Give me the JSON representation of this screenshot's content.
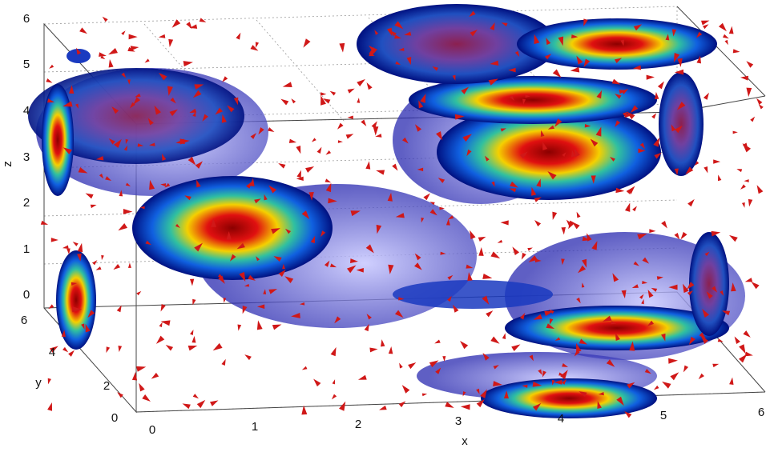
{
  "axes": {
    "x": {
      "label": "x",
      "ticks": [
        "0",
        "1",
        "2",
        "3",
        "4",
        "5",
        "6"
      ]
    },
    "y": {
      "label": "y",
      "ticks": [
        "0",
        "2",
        "4",
        "6"
      ]
    },
    "z": {
      "label": "z",
      "ticks": [
        "0",
        "1",
        "2",
        "3",
        "4",
        "5",
        "6"
      ]
    }
  }
}
